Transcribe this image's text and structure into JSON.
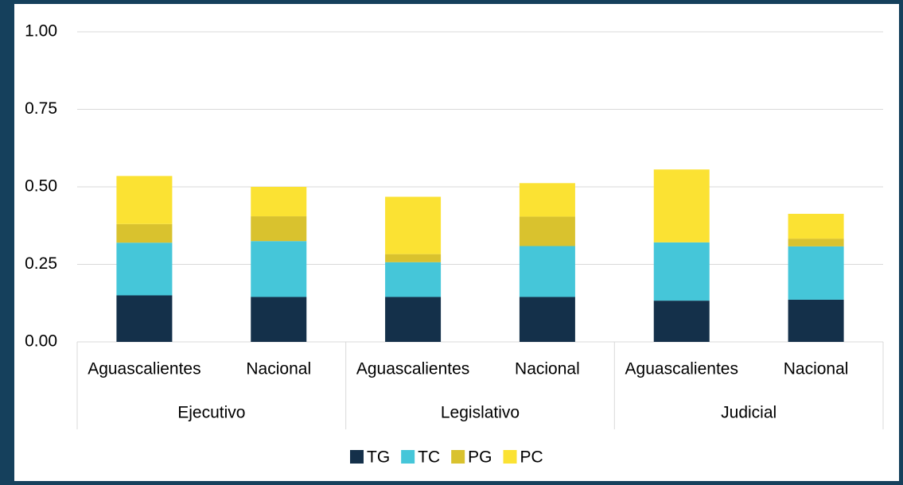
{
  "chart_data": {
    "type": "stacked_bar",
    "groups": [
      "Ejecutivo",
      "Legislativo",
      "Judicial"
    ],
    "categories": [
      "Aguascalientes",
      "Nacional",
      "Aguascalientes",
      "Nacional",
      "Aguascalientes",
      "Nacional"
    ],
    "series": [
      {
        "name": "TG",
        "color": "#14304a",
        "values": [
          0.15,
          0.145,
          0.145,
          0.145,
          0.133,
          0.136
        ]
      },
      {
        "name": "TC",
        "color": "#45c6d9",
        "values": [
          0.17,
          0.18,
          0.112,
          0.164,
          0.188,
          0.172
        ]
      },
      {
        "name": "PG",
        "color": "#d9c22e",
        "values": [
          0.06,
          0.08,
          0.026,
          0.095,
          0,
          0.025
        ]
      },
      {
        "name": "PC",
        "color": "#fbe233",
        "values": [
          0.155,
          0.095,
          0.185,
          0.108,
          0.235,
          0.08
        ]
      }
    ],
    "ylim": [
      0,
      1
    ],
    "yticks": [
      {
        "value": 0,
        "label": "0.00"
      },
      {
        "value": 0.25,
        "label": "0.25"
      },
      {
        "value": 0.5,
        "label": "0.50"
      },
      {
        "value": 0.75,
        "label": "0.75"
      },
      {
        "value": 1,
        "label": "1.00"
      }
    ],
    "grid": true,
    "legend": "bottom"
  }
}
